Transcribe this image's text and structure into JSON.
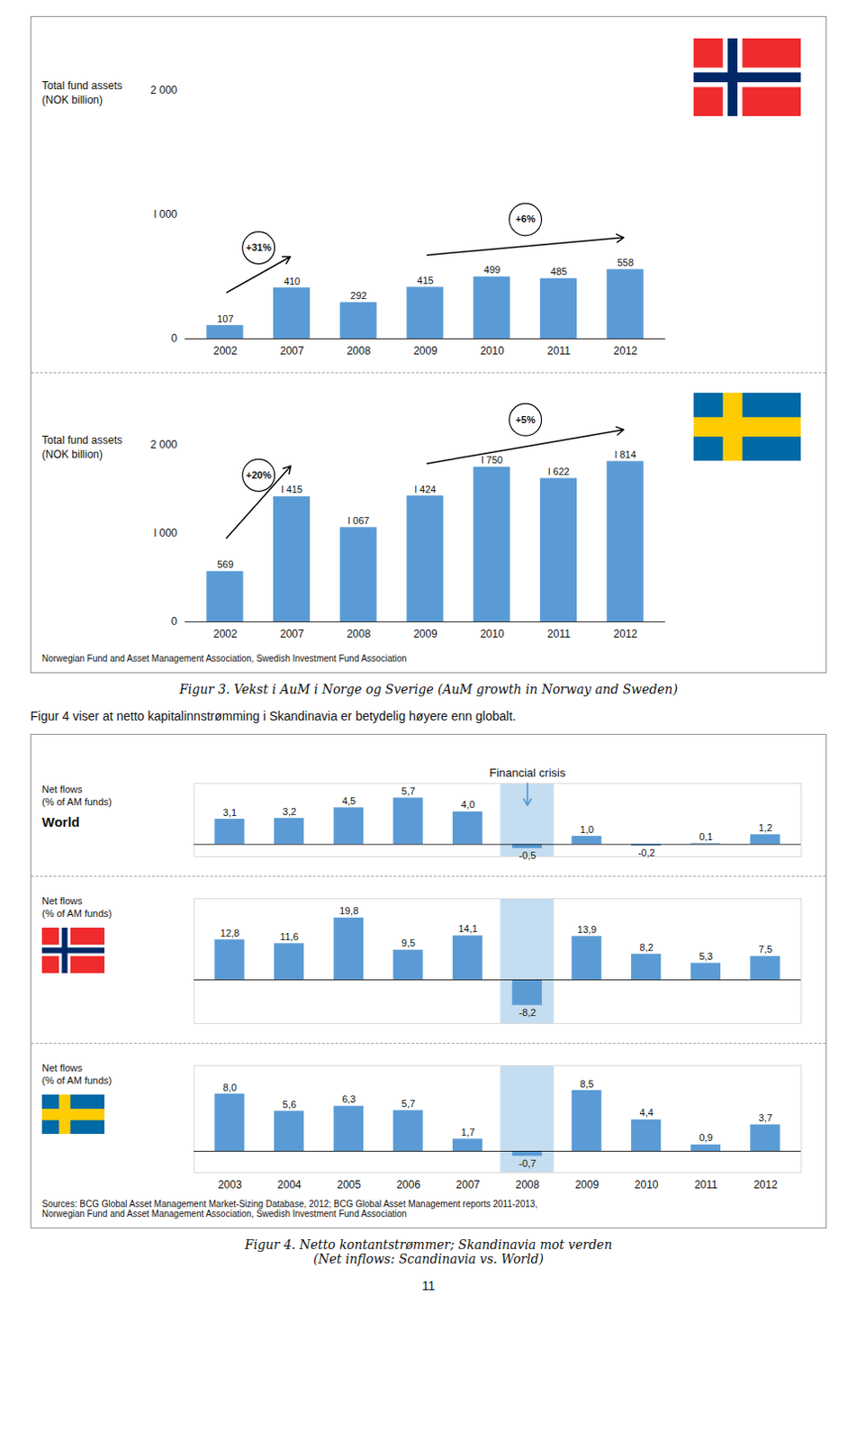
{
  "page": {
    "figure_3_source": "Norwegian Fund and Asset Management Association, Swedish Investment Fund Association",
    "figure_3_caption": "Figur 3. Vekst i AuM i Norge og Sverige (AuM growth in Norway and Sweden)",
    "intro": "Figur 4 viser at netto kapitalinnstrømming i Skandinavia er betydelig høyere enn globalt.",
    "figure_4_source": [
      "Sources: BCG Global Asset Management Market-Sizing Database, 2012; BCG Global Asset Management reports 2011-2013,",
      "Norwegian Fund and Asset Management Association, Swedish Investment Fund Association"
    ],
    "figure_4_caption": [
      "Figur 4. Netto kontantstrømmer; Skandinavia mot verden",
      "(Net inflows: Scandinavia vs. World)"
    ],
    "page_number": "11"
  },
  "chart_data": [
    {
      "type": "bar",
      "y_label": "Total fund assets\n(NOK billion)",
      "categories": [
        "2002",
        "2007",
        "2008",
        "2009",
        "2010",
        "2011",
        "2012"
      ],
      "values": [
        107,
        410,
        292,
        415,
        499,
        485,
        558
      ],
      "color": "#5b9bd5",
      "ylim": [
        0,
        2000
      ],
      "yticks": [
        0,
        {
          "value": 1000,
          "label": "l 000"
        },
        {
          "value": 2000,
          "label": "2 000"
        }
      ],
      "data_labels": true,
      "annotations": [
        {
          "text": "+31%",
          "from": "2002",
          "to": "2007"
        },
        {
          "text": "+6%",
          "from": "2009",
          "to": "2012"
        }
      ]
    },
    {
      "type": "bar",
      "y_label": "Total fund assets\n(NOK billion)",
      "categories": [
        "2002",
        "2007",
        "2008",
        "2009",
        "2010",
        "2011",
        "2012"
      ],
      "values": [
        569,
        1415,
        1067,
        1424,
        1750,
        1622,
        1814
      ],
      "value_labels": [
        "569",
        "l 415",
        "l 067",
        "l 424",
        "l 750",
        "l 622",
        "l 814"
      ],
      "color": "#5b9bd5",
      "ylim": [
        0,
        2000
      ],
      "yticks": [
        0,
        {
          "value": 1000,
          "label": "l 000"
        },
        {
          "value": 2000,
          "label": "2 000"
        }
      ],
      "data_labels": true,
      "annotations": [
        {
          "text": "+20%",
          "from": "2002",
          "to": "2007"
        },
        {
          "text": "+5%",
          "from": "2009",
          "to": "2012"
        }
      ]
    },
    {
      "type": "bar",
      "title": "World",
      "y_label": "Net flows\n(% of AM funds)",
      "categories": [
        "2003",
        "2004",
        "2005",
        "2006",
        "2007",
        "2008",
        "2009",
        "2010",
        "2011",
        "2012"
      ],
      "values": [
        3.1,
        3.2,
        4.5,
        5.7,
        4.0,
        -0.5,
        1.0,
        -0.2,
        0.1,
        1.2
      ],
      "value_labels": [
        "3,1",
        "3,2",
        "4,5",
        "5,7",
        "4,0",
        "-0,5",
        "1,0",
        "-0,2",
        "0,1",
        "1,2"
      ],
      "color": "#5b9bd5",
      "ylim": [
        -1.5,
        7.5
      ],
      "tick_labels": false,
      "data_labels": true,
      "highlight": {
        "category": "2008",
        "color": "#c5ddf0"
      },
      "annotations": [
        {
          "text": "Financial crisis",
          "category": "2008"
        }
      ]
    },
    {
      "type": "bar",
      "y_label": "Net flows\n(% of AM funds)",
      "categories": [
        "2003",
        "2004",
        "2005",
        "2006",
        "2007",
        "2008",
        "2009",
        "2010",
        "2011",
        "2012"
      ],
      "values": [
        12.8,
        11.6,
        19.8,
        9.5,
        14.1,
        -8.2,
        13.9,
        8.2,
        5.3,
        7.5
      ],
      "value_labels": [
        "12,8",
        "11,6",
        "19,8",
        "9,5",
        "14,1",
        "-8,2",
        "13,9",
        "8,2",
        "5,3",
        "7,5"
      ],
      "color": "#5b9bd5",
      "ylim": [
        -14,
        26
      ],
      "tick_labels": false,
      "data_labels": true,
      "highlight": {
        "category": "2008",
        "color": "#c5ddf0"
      }
    },
    {
      "type": "bar",
      "y_label": "Net flows\n(% of AM funds)",
      "categories": [
        "2003",
        "2004",
        "2005",
        "2006",
        "2007",
        "2008",
        "2009",
        "2010",
        "2011",
        "2012"
      ],
      "values": [
        8.0,
        5.6,
        6.3,
        5.7,
        1.7,
        -0.7,
        8.5,
        4.4,
        0.9,
        3.7
      ],
      "value_labels": [
        "8,0",
        "5,6",
        "6,3",
        "5,7",
        "1,7",
        "-0,7",
        "8,5",
        "4,4",
        "0,9",
        "3,7"
      ],
      "color": "#5b9bd5",
      "ylim": [
        -3.0,
        12.0
      ],
      "tick_labels": "x",
      "data_labels": true,
      "highlight": {
        "category": "2008",
        "color": "#c5ddf0"
      }
    }
  ]
}
